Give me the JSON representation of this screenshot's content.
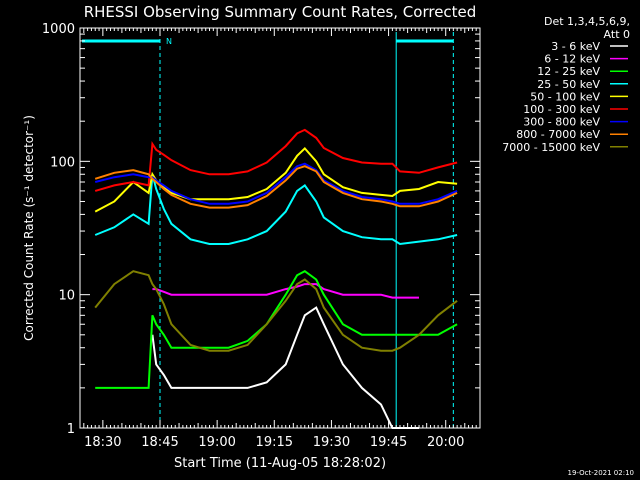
{
  "chart_data": {
    "type": "line",
    "title": "RHESSI Observing Summary Count Rates, Corrected",
    "xlabel": "Start Time (11-Aug-05 18:28:02)",
    "ylabel": "Corrected Count Rate (s⁻¹ detector⁻¹)",
    "yscale": "log",
    "ylim": [
      1,
      1000
    ],
    "xlim": [
      "18:24",
      "20:09"
    ],
    "xticks": [
      "18:30",
      "18:45",
      "19:00",
      "19:15",
      "19:30",
      "19:45",
      "20:00"
    ],
    "yticks": [
      "1",
      "10",
      "100",
      "1000"
    ],
    "grid": false,
    "legend_header": [
      "Det 1,3,4,5,6,9,",
      "Att 0"
    ],
    "legend_position": "right",
    "footer": "19-Oct-2021 02:10",
    "night_marker": "N",
    "colors": {
      "background": "#000000",
      "axes": "#ffffff",
      "marker": "#00ffff"
    },
    "x_minutes": [
      0,
      5,
      10,
      14,
      15,
      16,
      18,
      20,
      25,
      30,
      35,
      40,
      45,
      50,
      53,
      55,
      58,
      60,
      65,
      70,
      75,
      78,
      80,
      85,
      90,
      95
    ],
    "series": [
      {
        "name": "3 - 6 keV",
        "color": "#ffffff",
        "values": [
          null,
          null,
          null,
          null,
          5,
          3,
          2.5,
          2,
          2,
          2,
          2,
          2,
          2.2,
          3,
          5,
          7,
          8,
          6,
          3,
          2,
          1.5,
          1,
          1,
          1,
          null,
          null
        ]
      },
      {
        "name": "6 - 12 keV",
        "color": "#ff00ff",
        "values": [
          null,
          null,
          null,
          null,
          11,
          11,
          10.5,
          10,
          10,
          10,
          10,
          10,
          10,
          11,
          11.5,
          12,
          12,
          11,
          10,
          10,
          10,
          9.5,
          9.5,
          9.5,
          null,
          null
        ]
      },
      {
        "name": "12 - 25 keV",
        "color": "#00ff00",
        "values": [
          2,
          2,
          2,
          2,
          7,
          6,
          5,
          4,
          4,
          4,
          4,
          4.5,
          6,
          10,
          14,
          15,
          13,
          10,
          6,
          5,
          5,
          5,
          5,
          5,
          5,
          6
        ]
      },
      {
        "name": "25 - 50 keV",
        "color": "#00ffff",
        "values": [
          28,
          32,
          40,
          34,
          80,
          62,
          44,
          34,
          26,
          24,
          24,
          26,
          30,
          42,
          60,
          66,
          50,
          38,
          30,
          27,
          26,
          26,
          24,
          25,
          26,
          28
        ]
      },
      {
        "name": "50 - 100 keV",
        "color": "#ffff00",
        "values": [
          42,
          50,
          70,
          58,
          80,
          72,
          64,
          58,
          52,
          52,
          52,
          54,
          62,
          82,
          110,
          125,
          100,
          80,
          64,
          58,
          56,
          55,
          60,
          62,
          70,
          68
        ]
      },
      {
        "name": "100 - 300 keV",
        "color": "#ff0000",
        "values": [
          60,
          66,
          70,
          66,
          135,
          122,
          112,
          102,
          86,
          80,
          80,
          84,
          98,
          130,
          162,
          172,
          150,
          126,
          106,
          98,
          96,
          96,
          84,
          82,
          90,
          98
        ]
      },
      {
        "name": "300 - 800 keV",
        "color": "#0000ff",
        "values": [
          70,
          76,
          80,
          76,
          76,
          72,
          66,
          60,
          52,
          48,
          48,
          50,
          58,
          76,
          92,
          96,
          86,
          72,
          60,
          54,
          52,
          50,
          48,
          48,
          52,
          60
        ]
      },
      {
        "name": "800 - 7000 keV",
        "color": "#ff8000",
        "values": [
          74,
          82,
          86,
          80,
          74,
          70,
          62,
          56,
          48,
          45,
          45,
          47,
          55,
          72,
          88,
          92,
          84,
          70,
          58,
          52,
          50,
          48,
          46,
          46,
          50,
          58
        ]
      },
      {
        "name": "7000 - 15000 keV",
        "color": "#808000",
        "values": [
          8,
          12,
          15,
          14,
          12,
          11,
          8.5,
          6,
          4.2,
          3.8,
          3.8,
          4.2,
          6,
          9,
          12,
          13,
          11,
          8,
          5,
          4,
          3.8,
          3.8,
          4,
          5,
          7,
          9
        ]
      }
    ]
  }
}
